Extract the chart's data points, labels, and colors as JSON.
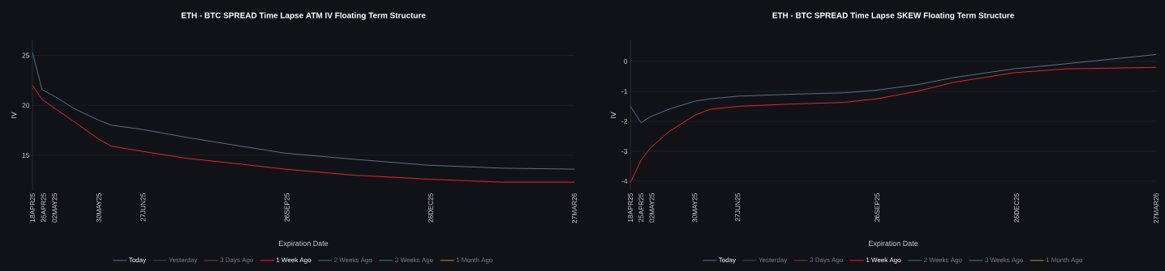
{
  "chart_data": [
    {
      "type": "line",
      "title": "ETH - BTC SPREAD Time Lapse ATM IV Floating Term Structure",
      "xlabel": "Expiration Date",
      "ylabel": "IV",
      "x": [
        "2025-04-18",
        "2025-04-24",
        "2025-05-03",
        "2025-05-14",
        "2025-05-30",
        "2025-06-07",
        "2025-06-26",
        "2025-07-24",
        "2025-08-28",
        "2025-09-25",
        "2025-11-07",
        "2025-12-24",
        "2026-02-09",
        "2026-03-27"
      ],
      "series": [
        {
          "name": "Today",
          "color": "#56718c",
          "values": [
            25.3,
            21.6,
            20.8,
            19.7,
            18.5,
            18.0,
            17.6,
            16.8,
            15.9,
            15.2,
            14.6,
            14.0,
            13.7,
            13.6
          ]
        },
        {
          "name": "Yesterday",
          "color": "#3d4a5c",
          "values": [
            null,
            null,
            null,
            null,
            null,
            null,
            null,
            null,
            null,
            null,
            null,
            null,
            null,
            null
          ]
        },
        {
          "name": "3 Days Ago",
          "color": "#8a3a3a",
          "values": [
            null,
            null,
            null,
            null,
            null,
            null,
            null,
            null,
            null,
            null,
            null,
            null,
            null,
            null
          ]
        },
        {
          "name": "1 Week Ago",
          "color": "#e0282a",
          "values": [
            22.0,
            20.6,
            19.6,
            18.4,
            16.6,
            15.9,
            15.4,
            14.7,
            14.1,
            13.6,
            13.0,
            12.6,
            12.3,
            12.3
          ]
        },
        {
          "name": "2 Weeks Ago",
          "color": "#2f7f6f",
          "values": [
            null,
            null,
            null,
            null,
            null,
            null,
            null,
            null,
            null,
            null,
            null,
            null,
            null,
            null
          ]
        },
        {
          "name": "3 Weeks Ago",
          "color": "#2c8a8a",
          "values": [
            null,
            null,
            null,
            null,
            null,
            null,
            null,
            null,
            null,
            null,
            null,
            null,
            null,
            null
          ]
        },
        {
          "name": "1 Month Ago",
          "color": "#b8962e",
          "values": [
            null,
            null,
            null,
            null,
            null,
            null,
            null,
            null,
            null,
            null,
            null,
            null,
            null,
            null
          ]
        }
      ],
      "xlim": [
        "2025-04-18",
        "2026-03-27"
      ],
      "xticks": [
        {
          "value": "2025-04-18",
          "label": "18APR25"
        },
        {
          "value": "2025-04-25",
          "label": "25APR25"
        },
        {
          "value": "2025-05-02",
          "label": "02MAY25"
        },
        {
          "value": "2025-05-30",
          "label": "30MAY25"
        },
        {
          "value": "2025-06-27",
          "label": "27JUN25"
        },
        {
          "value": "2025-09-26",
          "label": "26SEP25"
        },
        {
          "value": "2025-12-26",
          "label": "26DEC25"
        },
        {
          "value": "2026-03-27",
          "label": "27MAR26"
        }
      ],
      "ylim": [
        11.5,
        26.5
      ],
      "yticks": [
        15,
        20,
        25
      ],
      "grid": "y",
      "legend": "bottom"
    },
    {
      "type": "line",
      "title": "ETH - BTC SPREAD Time Lapse SKEW Floating Term Structure",
      "xlabel": "Expiration Date",
      "ylabel": "IV",
      "x": [
        "2025-04-18",
        "2025-04-25",
        "2025-05-01",
        "2025-05-13",
        "2025-05-30",
        "2025-06-09",
        "2025-06-28",
        "2025-07-30",
        "2025-09-04",
        "2025-09-26",
        "2025-10-22",
        "2025-11-15",
        "2025-12-24",
        "2026-01-27",
        "2026-03-27"
      ],
      "series": [
        {
          "name": "Today",
          "color": "#56718c",
          "values": [
            -1.5,
            -2.05,
            -1.85,
            -1.6,
            -1.33,
            -1.25,
            -1.16,
            -1.1,
            -1.05,
            -0.96,
            -0.78,
            -0.54,
            -0.25,
            -0.08,
            0.23
          ]
        },
        {
          "name": "Yesterday",
          "color": "#3d4a5c",
          "values": [
            null,
            null,
            null,
            null,
            null,
            null,
            null,
            null,
            null,
            null,
            null,
            null,
            null,
            null,
            null
          ]
        },
        {
          "name": "3 Days Ago",
          "color": "#8a3a3a",
          "values": [
            null,
            null,
            null,
            null,
            null,
            null,
            null,
            null,
            null,
            null,
            null,
            null,
            null,
            null,
            null
          ]
        },
        {
          "name": "1 Week Ago",
          "color": "#e0282a",
          "values": [
            -4.05,
            -3.3,
            -2.9,
            -2.35,
            -1.8,
            -1.6,
            -1.5,
            -1.43,
            -1.37,
            -1.25,
            -1.0,
            -0.7,
            -0.38,
            -0.25,
            -0.2
          ]
        },
        {
          "name": "2 Weeks Ago",
          "color": "#2f7f6f",
          "values": [
            null,
            null,
            null,
            null,
            null,
            null,
            null,
            null,
            null,
            null,
            null,
            null,
            null,
            null,
            null
          ]
        },
        {
          "name": "3 Weeks Ago",
          "color": "#2c8a8a",
          "values": [
            null,
            null,
            null,
            null,
            null,
            null,
            null,
            null,
            null,
            null,
            null,
            null,
            null,
            null,
            null
          ]
        },
        {
          "name": "1 Month Ago",
          "color": "#b8962e",
          "values": [
            null,
            null,
            null,
            null,
            null,
            null,
            null,
            null,
            null,
            null,
            null,
            null,
            null,
            null,
            null
          ]
        }
      ],
      "xlim": [
        "2025-04-18",
        "2026-03-27"
      ],
      "xticks": [
        {
          "value": "2025-04-18",
          "label": "18APR25"
        },
        {
          "value": "2025-04-25",
          "label": "25APR25"
        },
        {
          "value": "2025-05-02",
          "label": "02MAY25"
        },
        {
          "value": "2025-05-30",
          "label": "30MAY25"
        },
        {
          "value": "2025-06-27",
          "label": "27JUN25"
        },
        {
          "value": "2025-09-26",
          "label": "26SEP25"
        },
        {
          "value": "2025-12-26",
          "label": "26DEC25"
        },
        {
          "value": "2026-03-27",
          "label": "27MAR26"
        }
      ],
      "ylim": [
        -4.3,
        0.7
      ],
      "yticks": [
        -4,
        -3,
        -2,
        -1,
        0
      ],
      "grid": "y",
      "legend": "bottom"
    }
  ]
}
